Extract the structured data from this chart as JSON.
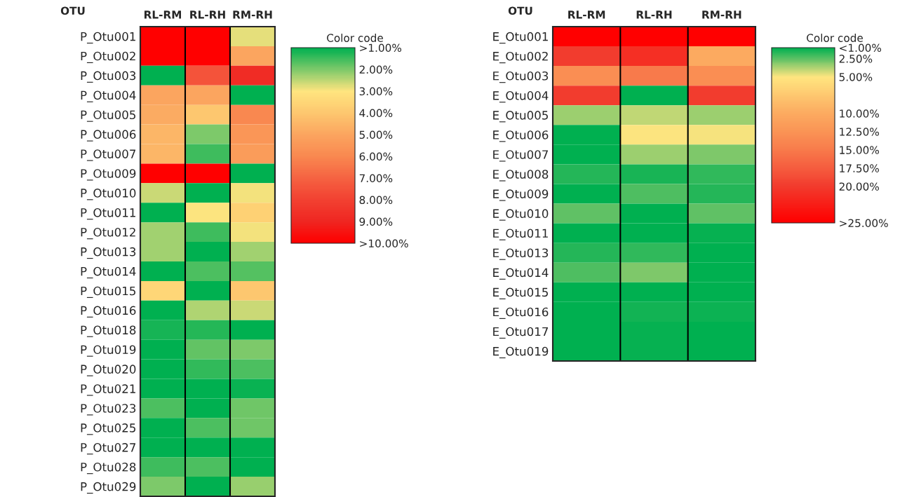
{
  "chart_data": [
    {
      "type": "heatmap",
      "ylabel": "OTU",
      "clabel": "Color code",
      "categories": [
        "RL-RM",
        "RL-RH",
        "RM-RH"
      ],
      "y_categories": [
        "P_Otu001",
        "P_Otu002",
        "P_Otu003",
        "P_Otu004",
        "P_Otu005",
        "P_Otu006",
        "P_Otu007",
        "P_Otu009",
        "P_Otu010",
        "P_Otu011",
        "P_Otu012",
        "P_Otu013",
        "P_Otu014",
        "P_Otu015",
        "P_Otu016",
        "P_Otu018",
        "P_Otu019",
        "P_Otu020",
        "P_Otu021",
        "P_Otu023",
        "P_Otu025",
        "P_Otu027",
        "P_Otu028",
        "P_Otu029"
      ],
      "cells": [
        [
          10,
          10,
          2.8
        ],
        [
          10,
          10,
          5
        ],
        [
          1,
          7.5,
          8.8
        ],
        [
          5,
          5,
          1
        ],
        [
          4.8,
          4,
          6
        ],
        [
          4.5,
          2,
          5.5
        ],
        [
          4.5,
          1.5,
          5.3
        ],
        [
          10,
          10,
          1
        ],
        [
          2.6,
          1,
          2.9
        ],
        [
          1,
          3,
          3.7
        ],
        [
          2.3,
          1.5,
          2.9
        ],
        [
          2.3,
          1,
          2.3
        ],
        [
          1,
          1.6,
          1.7
        ],
        [
          3.5,
          1,
          4
        ],
        [
          1,
          2.4,
          2.6
        ],
        [
          1.2,
          1.3,
          1
        ],
        [
          1,
          1.8,
          2
        ],
        [
          1,
          1.4,
          1.6
        ],
        [
          1,
          1,
          1.1
        ],
        [
          1.6,
          1,
          1.9
        ],
        [
          1,
          1.6,
          1.9
        ],
        [
          1,
          1,
          1
        ],
        [
          1.5,
          1.6,
          1
        ],
        [
          2,
          1,
          2.2
        ]
      ],
      "clim": [
        1,
        10
      ],
      "cticks": [
        {
          "value": 1,
          "label": ">1.00%"
        },
        {
          "value": 2,
          "label": "2.00%"
        },
        {
          "value": 3,
          "label": "3.00%"
        },
        {
          "value": 4,
          "label": "4.00%"
        },
        {
          "value": 5,
          "label": "5.00%"
        },
        {
          "value": 6,
          "label": "6.00%"
        },
        {
          "value": 7,
          "label": "7.00%"
        },
        {
          "value": 8,
          "label": "8.00%"
        },
        {
          "value": 9,
          "label": "9.00%"
        },
        {
          "value": 10,
          "label": ">10.00%"
        }
      ],
      "colors": [
        "#00b050",
        "#7ec96a",
        "#ffe57f",
        "#fdc76f",
        "#fba55f",
        "#f98850",
        "#f56342",
        "#f24232",
        "#ef2722",
        "#ff0000"
      ]
    },
    {
      "type": "heatmap",
      "ylabel": "OTU",
      "clabel": "Color code",
      "categories": [
        "RL-RM",
        "RL-RH",
        "RM-RH"
      ],
      "y_categories": [
        "E_Otu001",
        "E_Otu002",
        "E_Otu003",
        "E_Otu004",
        "E_Otu005",
        "E_Otu006",
        "E_Otu007",
        "E_Otu008",
        "E_Otu009",
        "E_Otu010",
        "E_Otu011",
        "E_Otu013",
        "E_Otu014",
        "E_Otu015",
        "E_Otu016",
        "E_Otu017",
        "E_Otu019"
      ],
      "cells": [
        [
          25,
          25,
          25
        ],
        [
          20,
          21,
          10
        ],
        [
          13,
          15,
          13
        ],
        [
          20,
          1,
          20
        ],
        [
          3.5,
          4,
          3.5
        ],
        [
          1,
          5,
          4.9
        ],
        [
          1,
          3.5,
          3
        ],
        [
          1.6,
          1.4,
          1.8
        ],
        [
          1,
          2.3,
          1.6
        ],
        [
          2.5,
          1,
          2.5
        ],
        [
          1,
          1,
          1.1
        ],
        [
          1.6,
          1.8,
          1
        ],
        [
          2.3,
          3,
          1
        ],
        [
          1,
          1,
          1
        ],
        [
          1,
          1.3,
          1.2
        ],
        [
          1,
          1.1,
          1
        ],
        [
          1,
          1.1,
          1
        ]
      ],
      "clim": [
        1,
        25
      ],
      "cticks": [
        {
          "value": 1,
          "label": "<1.00%"
        },
        {
          "value": 2.5,
          "label": "2.50%"
        },
        {
          "value": 5,
          "label": "5.00%"
        },
        {
          "value": 10,
          "label": "10.00%"
        },
        {
          "value": 12.5,
          "label": "12.50%"
        },
        {
          "value": 15,
          "label": "15.00%"
        },
        {
          "value": 17.5,
          "label": "17.50%"
        },
        {
          "value": 20,
          "label": "20.00%"
        },
        {
          "value": 25,
          "label": ">25.00%"
        }
      ],
      "colors": [
        "#00b050",
        "#60c165",
        "#ffe57f",
        "#fcaa60",
        "#fa9455",
        "#f87a4b",
        "#f55c3e",
        "#f23c2e",
        "#ff0000"
      ]
    }
  ]
}
